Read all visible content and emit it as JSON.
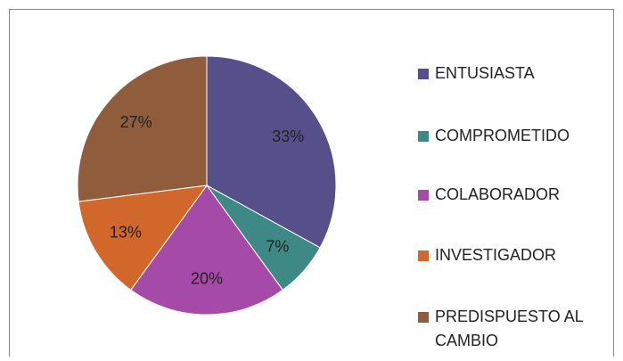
{
  "chart_data": {
    "type": "pie",
    "categories": [
      "ENTUSIASTA",
      "COMPROMETIDO",
      "COLABORADOR",
      "INVESTIGADOR",
      "PREDISPUESTO AL CAMBIO"
    ],
    "values": [
      33,
      7,
      20,
      13,
      27
    ],
    "value_labels": [
      "33%",
      "7%",
      "20%",
      "13%",
      "27%"
    ],
    "colors": [
      "#56508a",
      "#3e8986",
      "#a54ba7",
      "#d2672b",
      "#8f5d3b"
    ],
    "legend": "right"
  }
}
